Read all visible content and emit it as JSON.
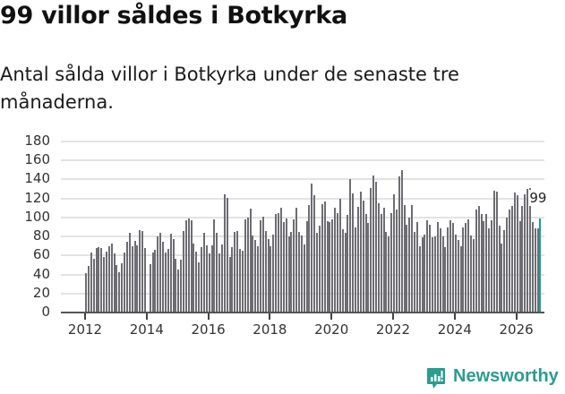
{
  "header": {
    "title": "99 villor såldes i Botkyrka",
    "subtitle": "Antal sålda villor i Botkyrka under de senaste tre månaderna."
  },
  "branding": {
    "logo_icon": "bar-chart-speech-bubble-icon",
    "logo_text": "Newsworthy",
    "color": "#2a9d8f"
  },
  "colors": {
    "bar": "#6e6d73",
    "highlight": "#1a9e95",
    "grid": "#e3e3e3",
    "axis": "#555555"
  },
  "chart_data": {
    "type": "bar",
    "title": "99 villor såldes i Botkyrka",
    "subtitle": "Antal sålda villor i Botkyrka under de senaste tre månaderna.",
    "xlabel": "",
    "ylabel": "",
    "ylim": [
      0,
      180
    ],
    "yticks": [
      0,
      20,
      40,
      60,
      80,
      100,
      120,
      140,
      160,
      180
    ],
    "xticks": [
      "2012",
      "2014",
      "2016",
      "2018",
      "2020",
      "2022",
      "2024",
      "2026"
    ],
    "grid": true,
    "legend": null,
    "start": "2012-01",
    "frequency": "monthly",
    "annotation": {
      "label": "99",
      "value": 99,
      "position": "last"
    },
    "values": [
      41,
      49,
      63,
      57,
      68,
      69,
      68,
      58,
      64,
      70,
      73,
      62,
      50,
      42,
      52,
      63,
      74,
      84,
      70,
      75,
      71,
      87,
      86,
      68,
      0,
      51,
      63,
      66,
      80,
      84,
      74,
      63,
      67,
      83,
      77,
      57,
      45,
      56,
      86,
      97,
      99,
      97,
      73,
      64,
      53,
      69,
      84,
      71,
      62,
      71,
      98,
      84,
      62,
      72,
      124,
      121,
      58,
      69,
      85,
      86,
      67,
      65,
      98,
      100,
      109,
      81,
      76,
      70,
      97,
      101,
      86,
      77,
      70,
      82,
      104,
      105,
      110,
      95,
      99,
      80,
      85,
      98,
      110,
      85,
      81,
      72,
      96,
      113,
      136,
      123,
      84,
      91,
      114,
      117,
      96,
      95,
      98,
      110,
      105,
      120,
      88,
      84,
      103,
      140,
      125,
      90,
      111,
      127,
      118,
      104,
      94,
      131,
      144,
      138,
      115,
      104,
      110,
      85,
      80,
      105,
      124,
      108,
      143,
      150,
      113,
      92,
      100,
      113,
      85,
      95,
      70,
      79,
      82,
      97,
      92,
      79,
      80,
      95,
      89,
      80,
      69,
      90,
      97,
      94,
      82,
      76,
      70,
      90,
      94,
      98,
      81,
      77,
      108,
      112,
      104,
      96,
      104,
      89,
      97,
      128,
      127,
      91,
      73,
      87,
      100,
      108,
      112,
      126,
      123,
      96,
      112,
      124,
      130,
      131,
      95,
      89,
      89,
      99
    ]
  }
}
